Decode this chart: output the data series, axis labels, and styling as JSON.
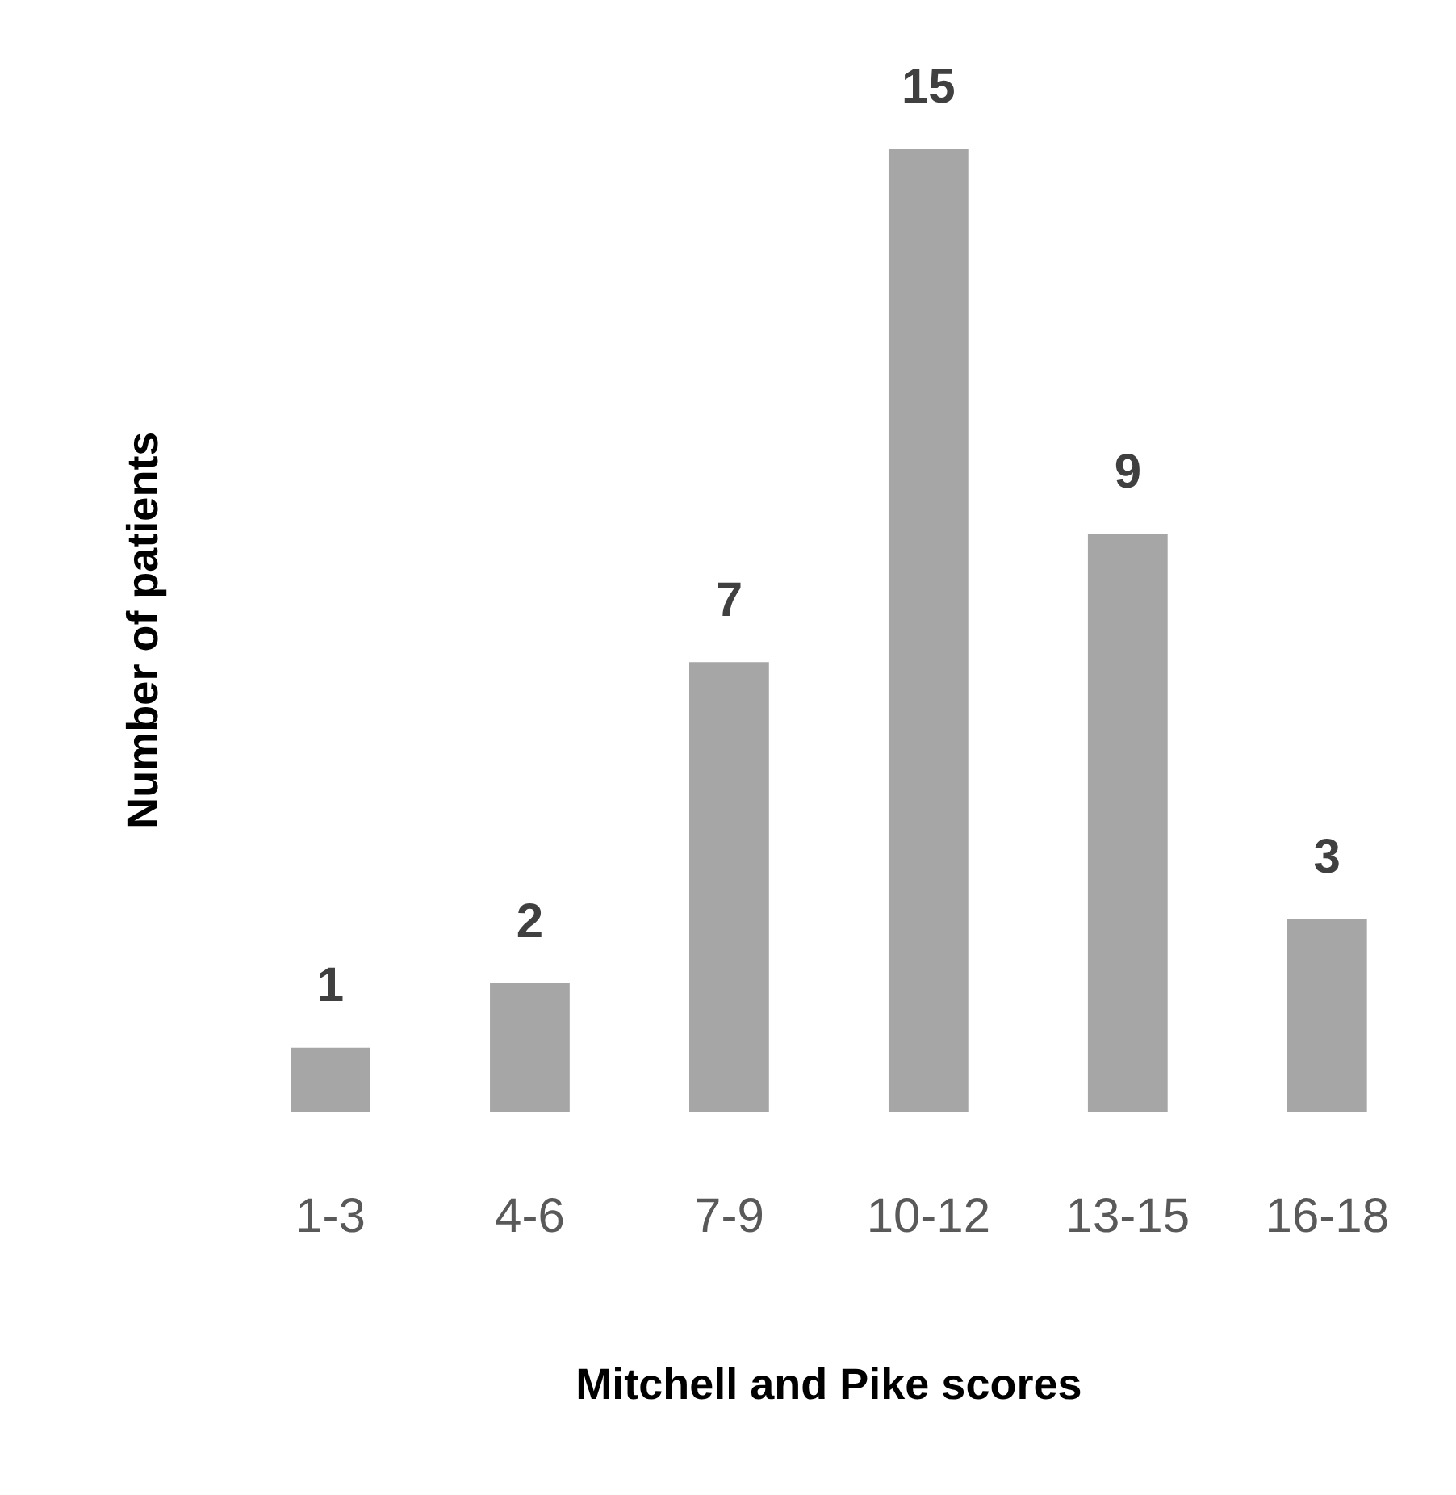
{
  "chart_data": {
    "type": "bar",
    "xlabel": "Mitchell and Pike scores",
    "ylabel": "Number of patients",
    "categories": [
      "1-3",
      "4-6",
      "7-9",
      "10-12",
      "13-15",
      "16-18"
    ],
    "values": [
      1,
      2,
      7,
      15,
      9,
      3
    ],
    "color": "#a6a6a6",
    "data_labels": true,
    "grid": false,
    "legend": false,
    "tick_labels": "x"
  }
}
